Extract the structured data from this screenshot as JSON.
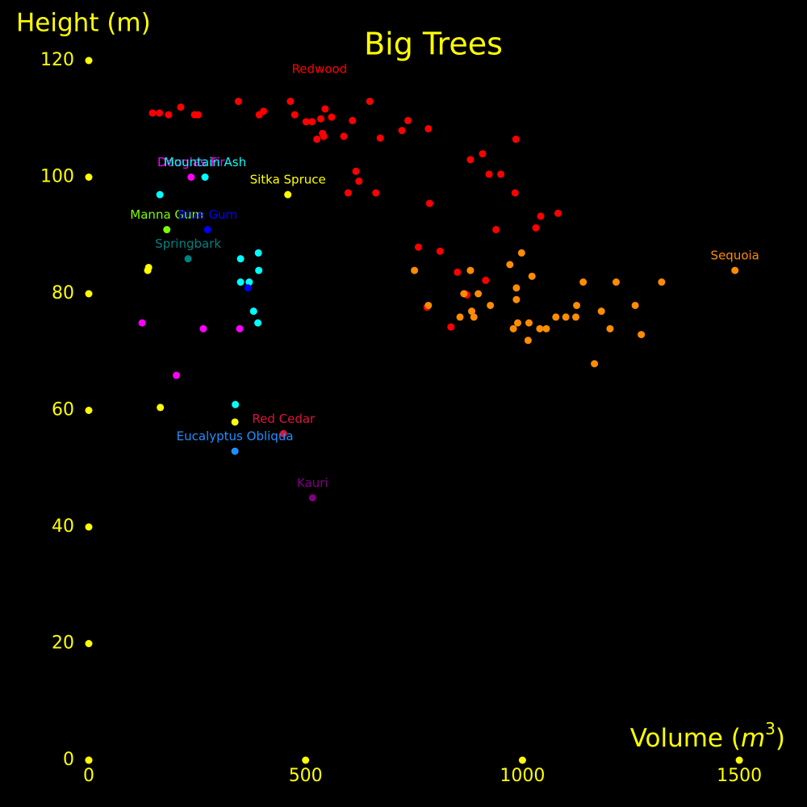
{
  "chart_data": {
    "type": "scatter",
    "title": "Big Trees",
    "xlabel": "Volume ($m^3$)",
    "xlabel_base": "Volume (",
    "xlabel_var": "m",
    "xlabel_sup": "3",
    "xlabel_close": ")",
    "ylabel": "Height (m)",
    "xlim": [
      0,
      1600
    ],
    "ylim": [
      0,
      120
    ],
    "x_ticks": [
      0,
      500,
      1000,
      1500
    ],
    "y_ticks": [
      0,
      20,
      40,
      60,
      80,
      100,
      120
    ],
    "grid": false,
    "colors": {
      "background": "#000000",
      "axis_text": "#ffff00",
      "tick_marker": "#ffff00"
    },
    "series": [
      {
        "name": "Redwood",
        "color": "#ff0000",
        "label_point": [
          532,
          116.0
        ],
        "points": [
          [
            147,
            111.0
          ],
          [
            163,
            111.0
          ],
          [
            184,
            110.7
          ],
          [
            212,
            112.0
          ],
          [
            244,
            110.7
          ],
          [
            252,
            110.7
          ],
          [
            345,
            113.0
          ],
          [
            393,
            110.7
          ],
          [
            403,
            111.3
          ],
          [
            465,
            113.0
          ],
          [
            475,
            110.7
          ],
          [
            501,
            109.5
          ],
          [
            515,
            109.5
          ],
          [
            526,
            106.5
          ],
          [
            535,
            110.0
          ],
          [
            539,
            107.5
          ],
          [
            542,
            107.0
          ],
          [
            545,
            111.7
          ],
          [
            560,
            110.3
          ],
          [
            588,
            107.0
          ],
          [
            608,
            109.7
          ],
          [
            616,
            101.0
          ],
          [
            623,
            99.3
          ],
          [
            598,
            97.3
          ],
          [
            662,
            97.3
          ],
          [
            672,
            106.7
          ],
          [
            648,
            113.0
          ],
          [
            722,
            108.0
          ],
          [
            736,
            109.7
          ],
          [
            783,
            108.3
          ],
          [
            786,
            95.5
          ],
          [
            880,
            103.0
          ],
          [
            908,
            104.0
          ],
          [
            923,
            100.5
          ],
          [
            950,
            100.5
          ],
          [
            985,
            106.5
          ],
          [
            983,
            97.3
          ],
          [
            939,
            91.0
          ],
          [
            1031,
            91.3
          ],
          [
            1042,
            93.3
          ],
          [
            1082,
            93.8
          ],
          [
            760,
            88.0
          ],
          [
            810,
            87.3
          ],
          [
            850,
            83.7
          ],
          [
            867,
            80.0
          ],
          [
            872,
            79.8
          ],
          [
            915,
            82.3
          ],
          [
            780,
            77.7
          ],
          [
            835,
            74.3
          ]
        ]
      },
      {
        "name": "Sequoia",
        "color": "#ff8c00",
        "label_point": [
          1490,
          84.0
        ],
        "points": [
          [
            1490,
            84.0
          ],
          [
            751,
            84.0
          ],
          [
            880,
            84.0
          ],
          [
            971,
            85.0
          ],
          [
            998,
            87.0
          ],
          [
            1022,
            83.0
          ],
          [
            986,
            81.0
          ],
          [
            986,
            79.0
          ],
          [
            1140,
            82.0
          ],
          [
            1216,
            82.0
          ],
          [
            1321,
            82.0
          ],
          [
            898,
            80.0
          ],
          [
            865,
            80.0
          ],
          [
            926,
            78.0
          ],
          [
            783,
            78.0
          ],
          [
            1125,
            78.0
          ],
          [
            1260,
            78.0
          ],
          [
            1182,
            77.0
          ],
          [
            888,
            76.0
          ],
          [
            883,
            77.0
          ],
          [
            856,
            76.0
          ],
          [
            1077,
            76.0
          ],
          [
            1100,
            76.0
          ],
          [
            1123,
            76.0
          ],
          [
            989,
            75.0
          ],
          [
            1015,
            75.0
          ],
          [
            979,
            74.0
          ],
          [
            1040,
            74.0
          ],
          [
            1055,
            74.0
          ],
          [
            1202,
            74.0
          ],
          [
            1274,
            73.0
          ],
          [
            1013,
            72.0
          ],
          [
            1166,
            68.0
          ]
        ]
      },
      {
        "name": "Douglas Fir",
        "color": "#ff00ff",
        "label_point": [
          236,
          100.0
        ],
        "points": [
          [
            236,
            100.0
          ],
          [
            123,
            75.0
          ],
          [
            264,
            74.0
          ],
          [
            348,
            74.0
          ],
          [
            202,
            66.0
          ]
        ]
      },
      {
        "name": "Mountain Ash",
        "color": "#00ffff",
        "label_point": [
          268,
          100.0
        ],
        "points": [
          [
            268,
            100.0
          ],
          [
            164,
            97.0
          ],
          [
            391,
            87.0
          ],
          [
            350,
            86.0
          ],
          [
            392,
            84.0
          ],
          [
            350,
            82.0
          ],
          [
            370,
            82.0
          ],
          [
            380,
            77.0
          ],
          [
            390,
            75.0
          ],
          [
            338,
            61.0
          ]
        ]
      },
      {
        "name": "Sitka Spruce",
        "color": "#ffff00",
        "label_point": [
          459,
          97.0
        ],
        "points": [
          [
            459,
            97.0
          ],
          [
            136,
            84.0
          ],
          [
            138,
            84.5
          ],
          [
            165,
            60.5
          ],
          [
            337,
            58.0
          ]
        ]
      },
      {
        "name": "Manna Gum",
        "color": "#7cfc00",
        "label_point": [
          180,
          91.0
        ],
        "points": [
          [
            180,
            91.0
          ]
        ]
      },
      {
        "name": "Blue Gum",
        "color": "#0000ff",
        "label_point": [
          274,
          91.0
        ],
        "points": [
          [
            274,
            91.0
          ],
          [
            367,
            81.0
          ]
        ]
      },
      {
        "name": "Springbark",
        "color": "#008080",
        "label_point": [
          229,
          86.0
        ],
        "points": [
          [
            229,
            86.0
          ]
        ]
      },
      {
        "name": "Red Cedar",
        "color": "#dc143c",
        "label_point": [
          449,
          56.0
        ],
        "points": [
          [
            449,
            56.0
          ]
        ]
      },
      {
        "name": "Eucalyptus Obliqua",
        "color": "#1e90ff",
        "label_point": [
          337,
          53.0
        ],
        "points": [
          [
            337,
            53.0
          ]
        ]
      },
      {
        "name": "Kauri",
        "color": "#800080",
        "label_point": [
          516,
          45.0
        ],
        "points": [
          [
            516,
            45.0
          ]
        ]
      }
    ]
  }
}
